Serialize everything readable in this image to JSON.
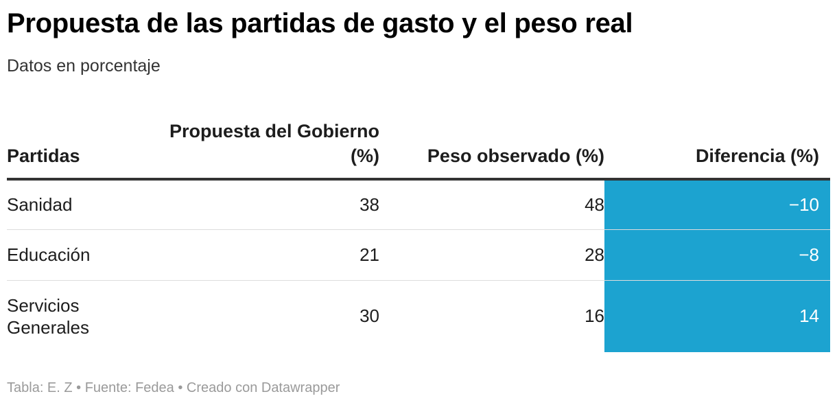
{
  "title": "Propuesta de las partidas de gasto y el peso real",
  "subtitle": "Datos en porcentaje",
  "footer": "Tabla: E. Z • Fuente: Fedea • Creado con Datawrapper",
  "colors": {
    "highlight": "#1ca3d0",
    "header_rule": "#333333",
    "row_rule": "#dddddd"
  },
  "chart_data": {
    "type": "table",
    "title": "Propuesta de las partidas de gasto y el peso real",
    "subtitle": "Datos en porcentaje",
    "columns": [
      "Partidas",
      "Propuesta del Gobierno (%)",
      "Peso observado (%)",
      "Diferencia (%)"
    ],
    "rows": [
      {
        "partida": "Sanidad",
        "propuesta": "38",
        "peso": "48",
        "diferencia": "−10"
      },
      {
        "partida": "Educación",
        "propuesta": "21",
        "peso": "28",
        "diferencia": "−8"
      },
      {
        "partida": "Servicios Generales",
        "propuesta": "30",
        "peso": "16",
        "diferencia": "14"
      }
    ]
  }
}
